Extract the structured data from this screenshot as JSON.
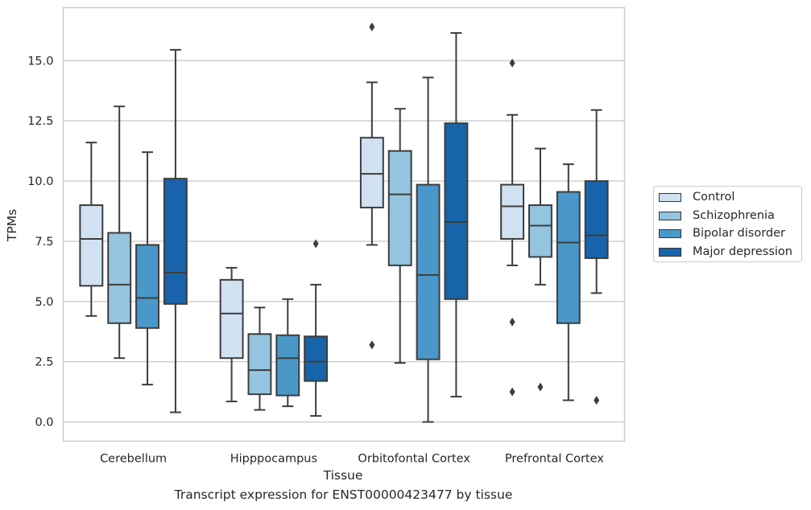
{
  "chart_data": {
    "type": "box",
    "caption": "Transcript expression for ENST00000423477 by tissue",
    "xlabel": "Tissue",
    "ylabel": "TPMs",
    "ylim": [
      -0.8,
      17.2
    ],
    "yticks": [
      "0.0",
      "2.5",
      "5.0",
      "7.5",
      "10.0",
      "12.5",
      "15.0"
    ],
    "grid": "horizontal",
    "legend_position": "right",
    "categories": [
      "Cerebellum",
      "Hipppocampus",
      "Orbitofontal Cortex",
      "Prefrontal Cortex"
    ],
    "series": [
      {
        "name": "Control",
        "color": "#d0e1f2",
        "boxes": [
          {
            "whislo": 4.4,
            "q1": 5.65,
            "med": 7.6,
            "q3": 9.0,
            "whishi": 11.6,
            "fliers": []
          },
          {
            "whislo": 0.85,
            "q1": 2.65,
            "med": 4.5,
            "q3": 5.9,
            "whishi": 6.4,
            "fliers": []
          },
          {
            "whislo": 7.35,
            "q1": 8.9,
            "med": 10.3,
            "q3": 11.8,
            "whishi": 14.1,
            "fliers": [
              16.4,
              3.2
            ]
          },
          {
            "whislo": 6.5,
            "q1": 7.6,
            "med": 8.95,
            "q3": 9.85,
            "whishi": 12.75,
            "fliers": [
              14.9,
              4.15,
              1.25
            ]
          }
        ]
      },
      {
        "name": "Schizophrenia",
        "color": "#94c4df",
        "boxes": [
          {
            "whislo": 2.65,
            "q1": 4.1,
            "med": 5.7,
            "q3": 7.85,
            "whishi": 13.1,
            "fliers": []
          },
          {
            "whislo": 0.5,
            "q1": 1.15,
            "med": 2.15,
            "q3": 3.65,
            "whishi": 4.75,
            "fliers": []
          },
          {
            "whislo": 2.45,
            "q1": 6.5,
            "med": 9.45,
            "q3": 11.25,
            "whishi": 13.0,
            "fliers": []
          },
          {
            "whislo": 5.7,
            "q1": 6.85,
            "med": 8.15,
            "q3": 9.0,
            "whishi": 11.35,
            "fliers": [
              1.45
            ]
          }
        ]
      },
      {
        "name": "Bipolar disorder",
        "color": "#4a98c9",
        "boxes": [
          {
            "whislo": 1.55,
            "q1": 3.9,
            "med": 5.15,
            "q3": 7.35,
            "whishi": 11.2,
            "fliers": []
          },
          {
            "whislo": 0.65,
            "q1": 1.1,
            "med": 2.65,
            "q3": 3.6,
            "whishi": 5.1,
            "fliers": []
          },
          {
            "whislo": 0.0,
            "q1": 2.6,
            "med": 6.1,
            "q3": 9.85,
            "whishi": 14.3,
            "fliers": []
          },
          {
            "whislo": 0.9,
            "q1": 4.1,
            "med": 7.45,
            "q3": 9.55,
            "whishi": 10.7,
            "fliers": []
          }
        ]
      },
      {
        "name": "Major depression",
        "color": "#1764ab",
        "boxes": [
          {
            "whislo": 0.4,
            "q1": 4.9,
            "med": 6.2,
            "q3": 10.1,
            "whishi": 15.45,
            "fliers": []
          },
          {
            "whislo": 0.25,
            "q1": 1.7,
            "med": 2.5,
            "q3": 3.55,
            "whishi": 5.7,
            "fliers": [
              7.4
            ]
          },
          {
            "whislo": 1.05,
            "q1": 5.1,
            "med": 8.3,
            "q3": 12.4,
            "whishi": 16.15,
            "fliers": []
          },
          {
            "whislo": 5.35,
            "q1": 6.8,
            "med": 7.75,
            "q3": 10.0,
            "whishi": 12.95,
            "fliers": [
              0.9
            ]
          }
        ]
      }
    ]
  }
}
